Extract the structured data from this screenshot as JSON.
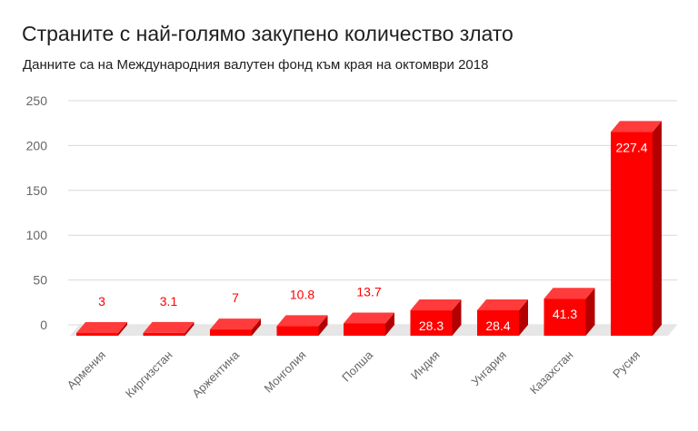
{
  "chart_data": {
    "type": "bar",
    "title": "Страните с най-голямо закупено количество злато",
    "subtitle": "Данните са на Международния валутен фонд към края на октомври 2018",
    "categories": [
      "Армения",
      "Киргизстан",
      "Аржентина",
      "Монголия",
      "Полша",
      "Индия",
      "Унгария",
      "Казахстан",
      "Русия"
    ],
    "series": [
      {
        "values": [
          3,
          3.1,
          7,
          10.8,
          13.7,
          28.3,
          28.4,
          41.3,
          227.4
        ]
      }
    ],
    "value_labels": [
      "3",
      "3.1",
      "7",
      "10.8",
      "13.7",
      "28.3",
      "28.4",
      "41.3",
      "227.4"
    ],
    "ylim": [
      0,
      250
    ],
    "yticks": [
      "0",
      "50",
      "100",
      "150",
      "200",
      "250"
    ],
    "xlabel": "",
    "ylabel": "",
    "grid": true,
    "bar_style": "3d",
    "colors": {
      "bar_front": "#ff0000",
      "bar_top": "#ff3b3b",
      "bar_side": "#b30000",
      "label_outside": "#ff0000",
      "label_inside": "#ffffff",
      "grid": "#d9d9d9",
      "axis_text": "#666666",
      "floor": "#e6e6e6"
    }
  }
}
